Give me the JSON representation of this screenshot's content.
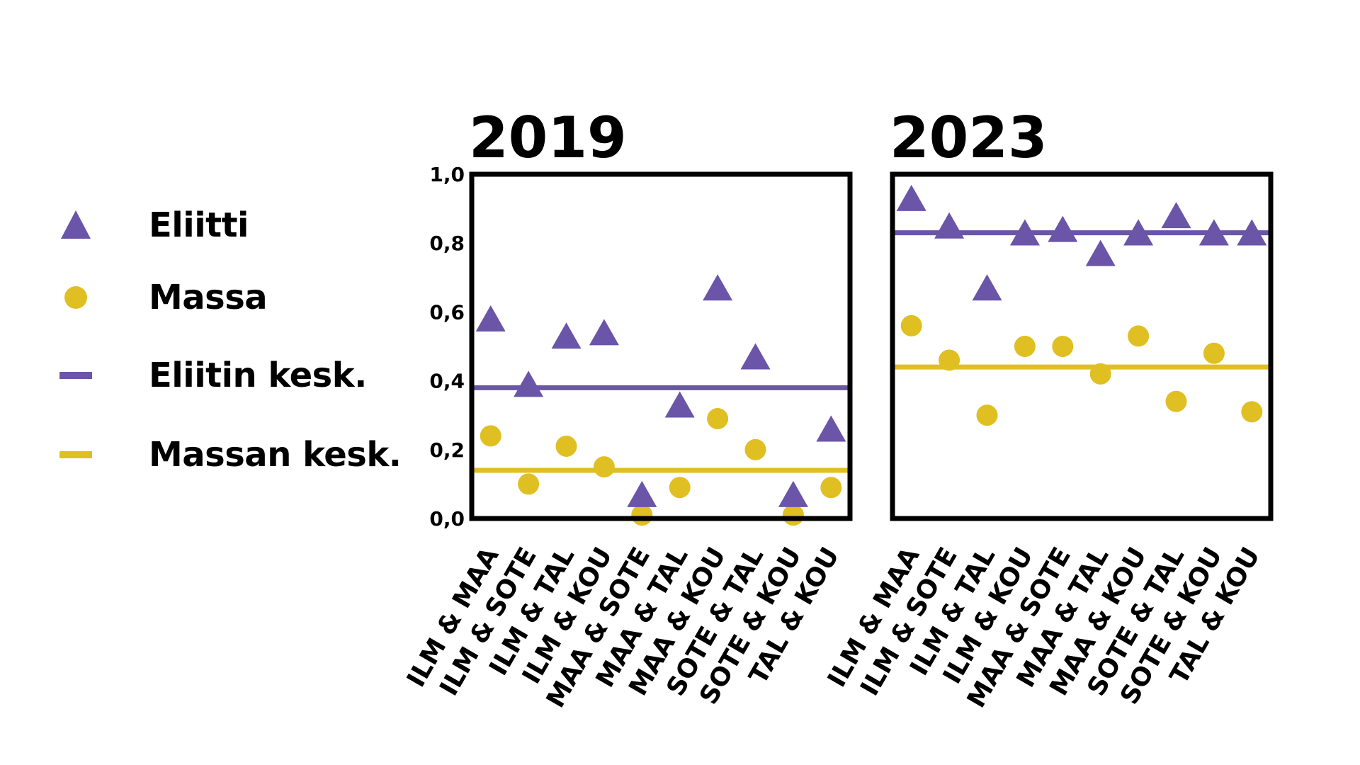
{
  "colors": {
    "elite": "#6a55a8",
    "mass": "#e0bf22",
    "frame": "#000000"
  },
  "legend": {
    "items": [
      {
        "key": "elite_marker",
        "label": "Eliitti",
        "icon": "triangle"
      },
      {
        "key": "mass_marker",
        "label": "Massa",
        "icon": "circle"
      },
      {
        "key": "elite_mean",
        "label": "Eliitin kesk.",
        "icon": "line"
      },
      {
        "key": "mass_mean",
        "label": "Massan kesk.",
        "icon": "line"
      }
    ]
  },
  "chart_data": [
    {
      "type": "scatter",
      "title": "2019",
      "categories": [
        "ILM & MAA",
        "ILM & SOTE",
        "ILM & TAL",
        "ILM & KOU",
        "MAA & SOTE",
        "MAA & TAL",
        "MAA & KOU",
        "SOTE & TAL",
        "SOTE & KOU",
        "TAL & KOU"
      ],
      "ylim": [
        0,
        1
      ],
      "yticks": [
        "0,0",
        "0,2",
        "0,4",
        "0,6",
        "0,8",
        "1,0"
      ],
      "series": [
        {
          "name": "Eliitti",
          "marker": "triangle",
          "values": [
            0.57,
            0.38,
            0.52,
            0.53,
            0.06,
            0.32,
            0.66,
            0.46,
            0.06,
            0.25
          ]
        },
        {
          "name": "Massa",
          "marker": "circle",
          "values": [
            0.24,
            0.1,
            0.21,
            0.15,
            0.01,
            0.09,
            0.29,
            0.2,
            0.01,
            0.09
          ]
        }
      ],
      "means": [
        {
          "name": "Eliitin kesk.",
          "value": 0.38
        },
        {
          "name": "Massan kesk.",
          "value": 0.14
        }
      ]
    },
    {
      "type": "scatter",
      "title": "2023",
      "categories": [
        "ILM & MAA",
        "ILM & SOTE",
        "ILM & TAL",
        "ILM & KOU",
        "MAA & SOTE",
        "MAA & TAL",
        "MAA & KOU",
        "SOTE & TAL",
        "SOTE & KOU",
        "TAL & KOU"
      ],
      "ylim": [
        0,
        1
      ],
      "series": [
        {
          "name": "Eliitti",
          "marker": "triangle",
          "values": [
            0.92,
            0.84,
            0.66,
            0.82,
            0.83,
            0.76,
            0.82,
            0.87,
            0.82,
            0.82
          ]
        },
        {
          "name": "Massa",
          "marker": "circle",
          "values": [
            0.56,
            0.46,
            0.3,
            0.5,
            0.5,
            0.42,
            0.53,
            0.34,
            0.48,
            0.31
          ]
        }
      ],
      "means": [
        {
          "name": "Eliitin kesk.",
          "value": 0.83
        },
        {
          "name": "Massan kesk.",
          "value": 0.44
        }
      ]
    }
  ]
}
